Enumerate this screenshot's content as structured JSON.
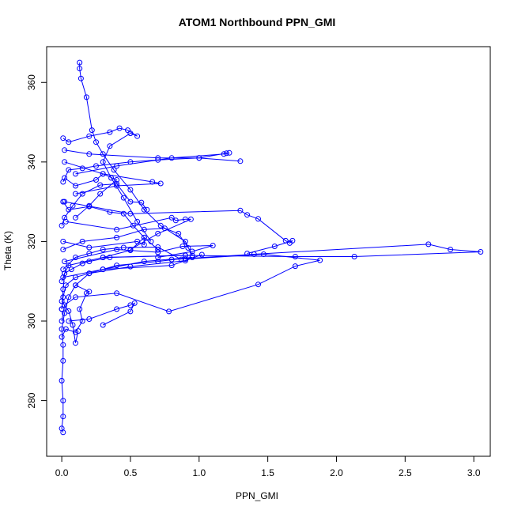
{
  "chart_data": {
    "type": "line",
    "title": "ATOM1 Northbound PPN_GMI",
    "xlabel": "PPN_GMI",
    "ylabel": "Theta (K)",
    "xlim": [
      -0.11,
      3.12
    ],
    "ylim": [
      266,
      369
    ],
    "x_ticks": [
      "0.0",
      "0.5",
      "1.0",
      "1.5",
      "2.0",
      "2.5",
      "3.0"
    ],
    "y_ticks": [
      "280",
      "300",
      "320",
      "340",
      "360"
    ],
    "marker": "open-circle",
    "series_color": "#0000ff",
    "series": [
      {
        "points": [
          [
            0.01,
            272
          ],
          [
            0.0,
            273
          ],
          [
            0.01,
            276
          ],
          [
            0.01,
            280
          ],
          [
            0.0,
            285
          ],
          [
            0.01,
            290
          ],
          [
            0.01,
            294
          ],
          [
            0.0,
            298
          ],
          [
            0.02,
            302
          ],
          [
            0.05,
            306
          ],
          [
            0.1,
            309
          ],
          [
            0.2,
            312
          ],
          [
            0.4,
            314
          ],
          [
            0.7,
            315
          ],
          [
            0.95,
            316
          ],
          [
            0.6,
            315
          ],
          [
            0.3,
            313
          ],
          [
            0.1,
            311
          ],
          [
            0.03,
            309
          ],
          [
            0.01,
            306
          ],
          [
            0.0,
            303
          ]
        ]
      },
      {
        "points": [
          [
            0.0,
            303
          ],
          [
            0.01,
            308
          ],
          [
            0.02,
            312
          ],
          [
            0.05,
            314
          ],
          [
            0.3,
            316
          ],
          [
            0.9,
            316.5
          ],
          [
            1.7,
            316.2
          ],
          [
            2.13,
            316.2
          ],
          [
            3.05,
            317.4
          ],
          [
            2.83,
            318
          ],
          [
            2.67,
            319.3
          ],
          [
            1.4,
            316.8
          ],
          [
            0.8,
            315.5
          ]
        ]
      },
      {
        "points": [
          [
            0.0,
            300
          ],
          [
            0.02,
            304
          ],
          [
            0.1,
            306
          ],
          [
            0.4,
            307
          ],
          [
            0.78,
            302.4
          ],
          [
            1.43,
            309.2
          ],
          [
            1.7,
            313.8
          ],
          [
            1.88,
            315.3
          ],
          [
            1.47,
            316.8
          ],
          [
            0.9,
            315.6
          ]
        ]
      },
      {
        "points": [
          [
            0.05,
            300
          ],
          [
            0.2,
            300.5
          ],
          [
            0.4,
            303
          ],
          [
            0.5,
            304
          ],
          [
            0.53,
            304.5
          ],
          [
            0.5,
            302.4
          ],
          [
            0.3,
            299
          ]
        ]
      },
      {
        "points": [
          [
            0.13,
            365
          ],
          [
            0.13,
            363.5
          ],
          [
            0.14,
            361
          ],
          [
            0.18,
            356.3
          ],
          [
            0.22,
            348
          ],
          [
            0.25,
            345
          ],
          [
            0.3,
            342
          ],
          [
            0.38,
            338
          ],
          [
            0.5,
            333
          ],
          [
            0.6,
            328
          ],
          [
            0.72,
            324
          ],
          [
            0.9,
            320
          ],
          [
            0.95,
            316.5
          ]
        ]
      },
      {
        "points": [
          [
            0.01,
            346
          ],
          [
            0.05,
            345
          ],
          [
            0.2,
            346.5
          ],
          [
            0.35,
            347.5
          ],
          [
            0.42,
            348.5
          ],
          [
            0.48,
            348
          ],
          [
            0.55,
            346.5
          ],
          [
            0.5,
            347.2
          ],
          [
            0.35,
            344
          ],
          [
            0.3,
            340
          ],
          [
            0.36,
            336
          ],
          [
            0.45,
            331
          ],
          [
            0.55,
            325
          ],
          [
            0.65,
            320
          ]
        ]
      },
      {
        "points": [
          [
            0.02,
            343
          ],
          [
            0.2,
            342
          ],
          [
            0.7,
            341
          ],
          [
            1.0,
            341
          ],
          [
            1.2,
            342.2
          ],
          [
            1.22,
            342.3
          ],
          [
            1.18,
            342
          ],
          [
            0.8,
            341
          ],
          [
            0.4,
            339
          ],
          [
            0.1,
            337
          ]
        ]
      },
      {
        "points": [
          [
            0.02,
            340
          ],
          [
            0.3,
            337
          ],
          [
            0.66,
            335
          ],
          [
            0.72,
            334.6
          ],
          [
            0.4,
            334
          ],
          [
            0.1,
            332
          ]
        ]
      },
      {
        "points": [
          [
            0.02,
            330
          ],
          [
            0.5,
            327
          ],
          [
            1.3,
            327.8
          ],
          [
            1.35,
            326.7
          ],
          [
            1.43,
            325.7
          ],
          [
            1.63,
            320.2
          ],
          [
            1.66,
            319.6
          ],
          [
            1.68,
            320.2
          ],
          [
            1.55,
            318.8
          ],
          [
            1.35,
            317
          ]
        ]
      },
      {
        "points": [
          [
            0.03,
            325
          ],
          [
            0.4,
            323
          ],
          [
            0.8,
            326
          ],
          [
            0.83,
            325.3
          ],
          [
            0.9,
            325.6
          ],
          [
            0.94,
            325.6
          ],
          [
            0.7,
            322
          ],
          [
            0.5,
            318
          ]
        ]
      },
      {
        "points": [
          [
            0.01,
            320
          ],
          [
            0.2,
            318.5
          ],
          [
            0.55,
            320
          ],
          [
            0.6,
            319.2
          ],
          [
            0.6,
            321
          ],
          [
            0.5,
            317.8
          ],
          [
            0.3,
            316
          ]
        ]
      },
      {
        "points": [
          [
            0.02,
            315
          ],
          [
            0.4,
            318
          ],
          [
            0.7,
            317.3
          ],
          [
            0.88,
            318.8
          ],
          [
            1.1,
            319
          ],
          [
            0.95,
            317.5
          ],
          [
            0.7,
            316
          ]
        ]
      },
      {
        "points": [
          [
            0.01,
            311
          ],
          [
            0.3,
            313
          ],
          [
            0.8,
            314
          ],
          [
            1.02,
            316.7
          ],
          [
            0.9,
            315.2
          ],
          [
            0.5,
            313.7
          ],
          [
            0.2,
            312
          ]
        ]
      },
      {
        "points": [
          [
            0.0,
            296
          ],
          [
            0.03,
            298
          ],
          [
            0.1,
            297.2
          ],
          [
            0.15,
            300
          ],
          [
            0.13,
            303
          ],
          [
            0.18,
            307
          ],
          [
            0.2,
            307.4
          ],
          [
            0.1,
            309
          ]
        ]
      },
      {
        "points": [
          [
            0.0,
            305
          ],
          [
            0.05,
            302.5
          ],
          [
            0.08,
            299
          ],
          [
            0.1,
            294.5
          ],
          [
            0.12,
            297.5
          ]
        ]
      },
      {
        "points": [
          [
            0.02,
            336
          ],
          [
            0.1,
            334
          ],
          [
            0.25,
            335.5
          ],
          [
            0.3,
            337
          ],
          [
            0.4,
            335.5
          ],
          [
            0.28,
            332
          ],
          [
            0.2,
            329
          ],
          [
            0.1,
            326
          ]
        ]
      },
      {
        "points": [
          [
            0.01,
            330
          ],
          [
            0.05,
            328
          ],
          [
            0.2,
            328.8
          ],
          [
            0.35,
            327.4
          ],
          [
            0.45,
            327
          ],
          [
            0.52,
            324
          ],
          [
            0.6,
            321
          ],
          [
            0.7,
            318
          ]
        ]
      },
      {
        "points": [
          [
            0.01,
            335
          ],
          [
            0.05,
            338
          ],
          [
            0.15,
            338.4
          ],
          [
            0.25,
            339
          ],
          [
            0.5,
            340
          ],
          [
            0.7,
            340.5
          ],
          [
            1.0,
            341
          ],
          [
            1.3,
            340.2
          ]
        ]
      },
      {
        "points": [
          [
            0.0,
            324
          ],
          [
            0.02,
            326
          ],
          [
            0.08,
            329
          ],
          [
            0.15,
            332
          ],
          [
            0.28,
            334.2
          ],
          [
            0.4,
            334.5
          ],
          [
            0.5,
            330
          ],
          [
            0.58,
            329.8
          ],
          [
            0.62,
            328
          ]
        ]
      },
      {
        "points": [
          [
            0.01,
            318
          ],
          [
            0.15,
            320
          ],
          [
            0.4,
            321
          ],
          [
            0.6,
            323
          ],
          [
            0.75,
            323.3
          ],
          [
            0.85,
            322
          ],
          [
            0.92,
            318.4
          ]
        ]
      },
      {
        "points": [
          [
            0.01,
            313
          ],
          [
            0.1,
            316
          ],
          [
            0.2,
            317
          ],
          [
            0.3,
            318
          ],
          [
            0.45,
            318.5
          ],
          [
            0.7,
            318.6
          ],
          [
            0.87,
            315.5
          ]
        ]
      },
      {
        "points": [
          [
            0.0,
            310
          ],
          [
            0.02,
            312
          ],
          [
            0.07,
            313
          ],
          [
            0.15,
            314.5
          ],
          [
            0.2,
            315
          ],
          [
            0.35,
            316
          ],
          [
            0.9,
            316.5
          ]
        ]
      }
    ]
  }
}
